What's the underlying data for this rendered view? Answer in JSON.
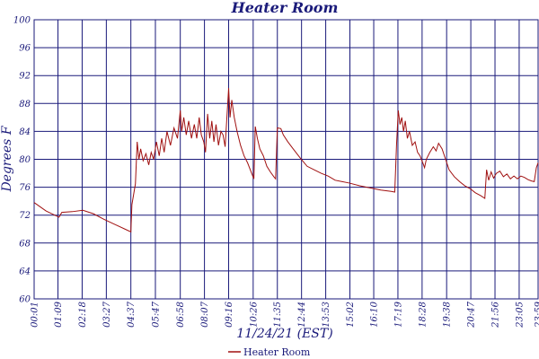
{
  "chart_data": {
    "type": "line",
    "title": "Heater Room",
    "xlabel": "11/24/21 (EST)",
    "ylabel": "Degrees F",
    "ylim": [
      60,
      100
    ],
    "yticks": [
      60,
      64,
      68,
      72,
      76,
      80,
      84,
      88,
      92,
      96,
      100
    ],
    "xlim": [
      1,
      1439
    ],
    "x_ticks": [
      {
        "label": "00:01",
        "x": 1
      },
      {
        "label": "01:09",
        "x": 69
      },
      {
        "label": "02:18",
        "x": 138
      },
      {
        "label": "03:27",
        "x": 207
      },
      {
        "label": "04:37",
        "x": 277
      },
      {
        "label": "05:47",
        "x": 347
      },
      {
        "label": "06:58",
        "x": 418
      },
      {
        "label": "08:07",
        "x": 487
      },
      {
        "label": "09:16",
        "x": 556
      },
      {
        "label": "10:26",
        "x": 626
      },
      {
        "label": "11:35",
        "x": 695
      },
      {
        "label": "12:44",
        "x": 764
      },
      {
        "label": "13:53",
        "x": 833
      },
      {
        "label": "15:02",
        "x": 902
      },
      {
        "label": "16:10",
        "x": 970
      },
      {
        "label": "17:19",
        "x": 1039
      },
      {
        "label": "18:28",
        "x": 1108
      },
      {
        "label": "19:38",
        "x": 1178
      },
      {
        "label": "20:47",
        "x": 1247
      },
      {
        "label": "21:56",
        "x": 1316
      },
      {
        "label": "23:05",
        "x": 1385
      },
      {
        "label": "23:59",
        "x": 1439
      }
    ],
    "grid": true,
    "legend": {
      "position": "bottom-center"
    },
    "series": [
      {
        "name": "Heater Room",
        "color": "#a01010",
        "points": [
          [
            1,
            73.8
          ],
          [
            35,
            72.6
          ],
          [
            72,
            71.7
          ],
          [
            80,
            72.4
          ],
          [
            110,
            72.5
          ],
          [
            140,
            72.7
          ],
          [
            170,
            72.2
          ],
          [
            200,
            71.4
          ],
          [
            230,
            70.7
          ],
          [
            260,
            70.0
          ],
          [
            277,
            69.6
          ],
          [
            280,
            73.5
          ],
          [
            285,
            75.0
          ],
          [
            290,
            76.5
          ],
          [
            295,
            82.5
          ],
          [
            300,
            80.0
          ],
          [
            305,
            81.5
          ],
          [
            312,
            79.8
          ],
          [
            320,
            80.8
          ],
          [
            328,
            79.2
          ],
          [
            335,
            81.0
          ],
          [
            342,
            80.0
          ],
          [
            350,
            82.5
          ],
          [
            358,
            80.5
          ],
          [
            365,
            83.0
          ],
          [
            372,
            81.0
          ],
          [
            380,
            84.0
          ],
          [
            390,
            82.0
          ],
          [
            400,
            84.5
          ],
          [
            410,
            83.0
          ],
          [
            418,
            87.0
          ],
          [
            422,
            84.0
          ],
          [
            428,
            86.0
          ],
          [
            435,
            83.5
          ],
          [
            442,
            85.5
          ],
          [
            450,
            83.0
          ],
          [
            458,
            85.0
          ],
          [
            465,
            83.0
          ],
          [
            472,
            86.0
          ],
          [
            478,
            83.5
          ],
          [
            485,
            82.5
          ],
          [
            490,
            81.0
          ],
          [
            496,
            86.5
          ],
          [
            502,
            83.0
          ],
          [
            508,
            85.5
          ],
          [
            514,
            82.5
          ],
          [
            520,
            85.0
          ],
          [
            527,
            82.0
          ],
          [
            534,
            84.0
          ],
          [
            540,
            83.5
          ],
          [
            546,
            81.8
          ],
          [
            556,
            90.2
          ],
          [
            560,
            86.0
          ],
          [
            565,
            88.5
          ],
          [
            572,
            86.0
          ],
          [
            580,
            84.0
          ],
          [
            590,
            82.0
          ],
          [
            600,
            80.5
          ],
          [
            610,
            79.5
          ],
          [
            620,
            78.2
          ],
          [
            628,
            77.2
          ],
          [
            632,
            84.7
          ],
          [
            638,
            83.0
          ],
          [
            645,
            81.5
          ],
          [
            655,
            80.5
          ],
          [
            665,
            79.0
          ],
          [
            675,
            78.2
          ],
          [
            685,
            77.5
          ],
          [
            690,
            77.2
          ],
          [
            695,
            84.5
          ],
          [
            705,
            84.4
          ],
          [
            712,
            83.5
          ],
          [
            725,
            82.5
          ],
          [
            740,
            81.5
          ],
          [
            760,
            80.2
          ],
          [
            780,
            79.0
          ],
          [
            800,
            78.5
          ],
          [
            820,
            78.0
          ],
          [
            840,
            77.6
          ],
          [
            860,
            77.0
          ],
          [
            880,
            76.8
          ],
          [
            900,
            76.6
          ],
          [
            930,
            76.2
          ],
          [
            960,
            75.9
          ],
          [
            990,
            75.6
          ],
          [
            1020,
            75.4
          ],
          [
            1030,
            75.3
          ],
          [
            1035,
            82.0
          ],
          [
            1040,
            87.0
          ],
          [
            1045,
            85.0
          ],
          [
            1050,
            86.0
          ],
          [
            1055,
            84.0
          ],
          [
            1060,
            85.5
          ],
          [
            1066,
            83.0
          ],
          [
            1072,
            84.0
          ],
          [
            1080,
            82.0
          ],
          [
            1088,
            82.5
          ],
          [
            1095,
            81.0
          ],
          [
            1102,
            80.5
          ],
          [
            1110,
            79.5
          ],
          [
            1115,
            78.8
          ],
          [
            1120,
            80.0
          ],
          [
            1130,
            81.0
          ],
          [
            1140,
            81.8
          ],
          [
            1148,
            81.2
          ],
          [
            1155,
            82.3
          ],
          [
            1165,
            81.5
          ],
          [
            1175,
            80.0
          ],
          [
            1185,
            78.5
          ],
          [
            1200,
            77.5
          ],
          [
            1215,
            76.8
          ],
          [
            1230,
            76.2
          ],
          [
            1245,
            75.8
          ],
          [
            1260,
            75.2
          ],
          [
            1275,
            74.8
          ],
          [
            1287,
            74.4
          ],
          [
            1292,
            78.5
          ],
          [
            1298,
            77.0
          ],
          [
            1305,
            78.2
          ],
          [
            1312,
            77.3
          ],
          [
            1320,
            78.0
          ],
          [
            1330,
            78.3
          ],
          [
            1340,
            77.5
          ],
          [
            1350,
            77.9
          ],
          [
            1360,
            77.2
          ],
          [
            1370,
            77.6
          ],
          [
            1380,
            77.2
          ],
          [
            1390,
            77.6
          ],
          [
            1400,
            77.4
          ],
          [
            1410,
            77.1
          ],
          [
            1420,
            76.9
          ],
          [
            1428,
            76.8
          ],
          [
            1434,
            78.8
          ],
          [
            1439,
            79.5
          ]
        ]
      }
    ]
  }
}
